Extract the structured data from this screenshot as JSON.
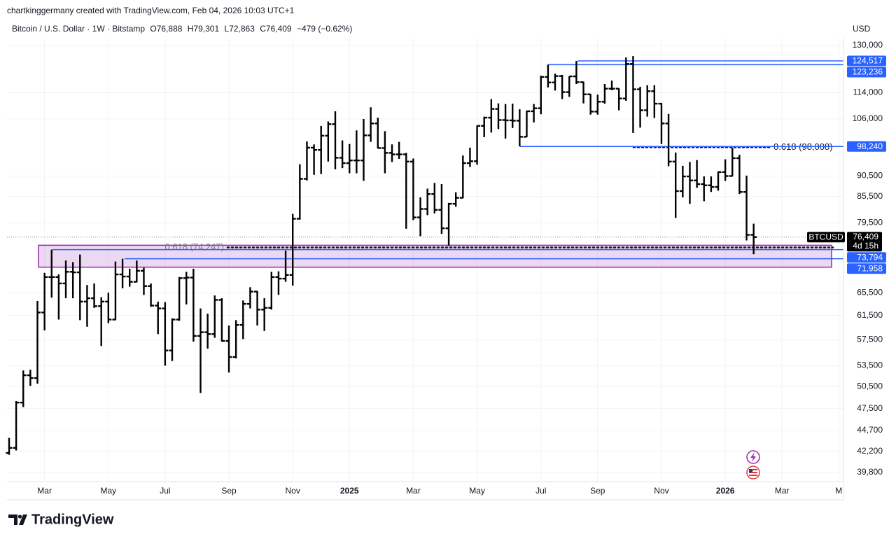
{
  "header": {
    "byline": "chartkinggermany created with TradingView.com, Feb 04, 2026 10:03 UTC+1",
    "symbol": "Bitcoin / U.S. Dollar · 1W · Bitstamp",
    "ohlc": [
      {
        "key": "O",
        "value": "76,888"
      },
      {
        "key": "H",
        "value": "79,301"
      },
      {
        "key": "L",
        "value": "72,863"
      },
      {
        "key": "C",
        "value": "76,409"
      }
    ],
    "change": "−479 (−0.62%)",
    "currency": "USD",
    "logo": "TradingView"
  },
  "chart_data": {
    "type": "ohlc",
    "log_scale": true,
    "grid": true,
    "ylim": [
      38800,
      132500
    ],
    "yticks": [
      {
        "value": 130000,
        "label": "130,000"
      },
      {
        "value": 114000,
        "label": "114,000"
      },
      {
        "value": 106000,
        "label": "106,000"
      },
      {
        "value": 90500,
        "label": "90,500"
      },
      {
        "value": 85500,
        "label": "85,500"
      },
      {
        "value": 79500,
        "label": "79,500"
      },
      {
        "value": 65500,
        "label": "65,500"
      },
      {
        "value": 61500,
        "label": "61,500"
      },
      {
        "value": 57500,
        "label": "57,500"
      },
      {
        "value": 53500,
        "label": "53,500"
      },
      {
        "value": 50500,
        "label": "50,500"
      },
      {
        "value": 47500,
        "label": "47,500"
      },
      {
        "value": 44700,
        "label": "44,700"
      },
      {
        "value": 42200,
        "label": "42,200"
      },
      {
        "value": 39800,
        "label": "39,800"
      }
    ],
    "categories": [
      null,
      null,
      null,
      null,
      null,
      "Mar",
      null,
      null,
      null,
      null,
      null,
      null,
      null,
      null,
      "May",
      null,
      null,
      null,
      null,
      null,
      null,
      null,
      "Jul",
      null,
      null,
      null,
      null,
      null,
      null,
      null,
      null,
      "Sep",
      null,
      null,
      null,
      null,
      null,
      null,
      null,
      null,
      "Nov",
      null,
      null,
      null,
      null,
      null,
      null,
      null,
      "2025",
      null,
      null,
      null,
      null,
      null,
      null,
      null,
      null,
      "Mar",
      null,
      null,
      null,
      null,
      null,
      null,
      null,
      null,
      "May",
      null,
      null,
      null,
      null,
      null,
      null,
      null,
      null,
      "Jul",
      null,
      null,
      null,
      null,
      null,
      null,
      null,
      "Sep",
      null,
      null,
      null,
      null,
      null,
      null,
      null,
      null,
      "Nov",
      null,
      null,
      null,
      null,
      null,
      null,
      null,
      null,
      "2026",
      null,
      null,
      null,
      null,
      null,
      null,
      null,
      "Mar",
      null,
      null,
      null,
      null,
      null,
      null,
      null,
      "M"
    ],
    "series": [
      {
        "name": "BTCUSD",
        "color": "#000000",
        "open": [
          42000,
          42600,
          48300,
          52100,
          51700,
          62000,
          68400,
          68400,
          67200,
          69400,
          69300,
          63900,
          64500,
          63100,
          63900,
          60800,
          68900,
          68500,
          67500,
          69600,
          66700,
          63200,
          62700,
          55800,
          60800,
          68200,
          68300,
          58100,
          58700,
          58400,
          64200,
          57300,
          54800,
          59900,
          63500,
          65700,
          62500,
          62800,
          68400,
          68100,
          68800,
          80400,
          89800,
          97900,
          97300,
          101200,
          104500,
          95200,
          93800,
          94500,
          94500,
          101300,
          104700,
          97800,
          96500,
          96100,
          96100,
          94200,
          80700,
          82600,
          86100,
          82400,
          78300,
          83800,
          85200,
          93800,
          94300,
          104000,
          106400,
          109000,
          105700,
          105600,
          105500,
          100900,
          108300,
          109200,
          119100,
          117300,
          119400,
          114200,
          119300,
          117400,
          113500,
          108200,
          111200,
          115300,
          115300,
          112200,
          123500,
          115100,
          108600,
          114500,
          110600,
          104700,
          94200,
          86800,
          90400,
          89400,
          88500,
          88200,
          87800,
          91500,
          90500,
          95100,
          86600,
          76888,
          null,
          null,
          null,
          null,
          null,
          null,
          null,
          null,
          null,
          null,
          null,
          null
        ],
        "high": [
          43800,
          48500,
          52800,
          52900,
          64000,
          69200,
          73794,
          68900,
          71600,
          71300,
          72800,
          66900,
          67200,
          64700,
          65500,
          71400,
          71958,
          70000,
          71600,
          70200,
          67200,
          63900,
          63800,
          61000,
          68400,
          69400,
          70000,
          62700,
          61800,
          65000,
          64500,
          59800,
          60700,
          64100,
          66500,
          65800,
          64500,
          69400,
          69500,
          73600,
          81500,
          93500,
          99600,
          98800,
          104000,
          105300,
          108300,
          99900,
          98900,
          102700,
          106000,
          109500,
          106400,
          102500,
          98800,
          99500,
          96500,
          95000,
          85300,
          87400,
          88800,
          88500,
          84000,
          86500,
          95800,
          97900,
          104100,
          106700,
          112000,
          110700,
          110500,
          110600,
          108900,
          108500,
          110500,
          119500,
          123236,
          120200,
          119800,
          119300,
          124517,
          117600,
          113600,
          113400,
          116800,
          117900,
          115400,
          125700,
          126200,
          115900,
          116400,
          116400,
          110800,
          107500,
          96600,
          93100,
          94100,
          94600,
          90400,
          90400,
          91700,
          94800,
          97900,
          96000,
          90600,
          79301,
          null,
          null,
          null,
          null,
          null,
          null,
          null,
          null,
          null,
          null,
          null,
          null
        ],
        "low": [
          41800,
          42300,
          47700,
          50600,
          50900,
          59000,
          64600,
          60800,
          64500,
          64500,
          60700,
          59600,
          62800,
          56500,
          60200,
          60700,
          66300,
          66600,
          67400,
          65100,
          63000,
          58400,
          53500,
          54200,
          60600,
          63400,
          57200,
          49600,
          56100,
          57800,
          57200,
          52500,
          54600,
          57600,
          62700,
          59800,
          58900,
          62500,
          65100,
          67500,
          66800,
          80200,
          89400,
          90800,
          91000,
          94200,
          92200,
          92500,
          91200,
          91200,
          89300,
          99500,
          97700,
          91200,
          94100,
          94900,
          78200,
          80100,
          76600,
          81200,
          81600,
          77100,
          74600,
          83100,
          85100,
          92800,
          93400,
          100800,
          102100,
          103100,
          100400,
          103400,
          98240,
          100800,
          105000,
          107400,
          115700,
          114700,
          112000,
          112700,
          116800,
          110700,
          107300,
          107300,
          110600,
          114800,
          108600,
          111500,
          102000,
          103500,
          106700,
          106300,
          98900,
          93000,
          80600,
          85300,
          83800,
          87600,
          84400,
          86600,
          86900,
          89300,
          90400,
          86100,
          75700,
          72863,
          null,
          null,
          null,
          null,
          null,
          null,
          null,
          null,
          null,
          null,
          null,
          null
        ],
        "close": [
          42600,
          48300,
          52100,
          51700,
          62000,
          68400,
          68400,
          67200,
          69400,
          69300,
          63900,
          64500,
          63100,
          63900,
          60800,
          68900,
          68500,
          67500,
          69600,
          66700,
          63200,
          62700,
          55800,
          60800,
          68200,
          68300,
          58100,
          58700,
          58400,
          64200,
          57300,
          54800,
          59900,
          63500,
          65700,
          62500,
          62800,
          68400,
          68100,
          68800,
          80400,
          89800,
          97900,
          97300,
          101200,
          104500,
          95200,
          93800,
          94500,
          94500,
          101300,
          104700,
          97800,
          96500,
          96100,
          96100,
          94200,
          80700,
          82600,
          86100,
          82400,
          78300,
          83800,
          85200,
          93800,
          94300,
          104000,
          106400,
          109000,
          105700,
          105600,
          105500,
          100900,
          108300,
          109200,
          119100,
          117300,
          119400,
          114200,
          119300,
          117400,
          113500,
          108200,
          111200,
          115300,
          115300,
          112200,
          123500,
          115100,
          108600,
          114500,
          110600,
          104700,
          94200,
          86800,
          90400,
          89400,
          88500,
          88200,
          87800,
          91500,
          90500,
          95100,
          86600,
          76888,
          76409,
          null,
          null,
          null,
          null,
          null,
          null,
          null,
          null,
          null,
          null,
          null,
          null
        ]
      }
    ],
    "last_price": {
      "value": 76409,
      "label": "76,409",
      "countdown": "4d 15h",
      "color": "#000000"
    },
    "price_lines": [
      {
        "value": 124517,
        "label": "124,517",
        "color": "#2962ff"
      },
      {
        "value": 123236,
        "label": "123,236",
        "color": "#2962ff"
      },
      {
        "value": 98240,
        "label": "98,240",
        "color": "#2962ff"
      },
      {
        "value": 73794,
        "label": "73,794",
        "color": "#2962ff"
      },
      {
        "value": 71958,
        "label": "71,958",
        "color": "#2962ff"
      }
    ],
    "fib_levels": [
      {
        "value": 98008,
        "label": "0.618 (98,008)"
      },
      {
        "value": 74247,
        "label": "0.618 (74,247)"
      }
    ],
    "zone": {
      "low": 70300,
      "high": 74700,
      "color": "#9c27b0"
    }
  }
}
